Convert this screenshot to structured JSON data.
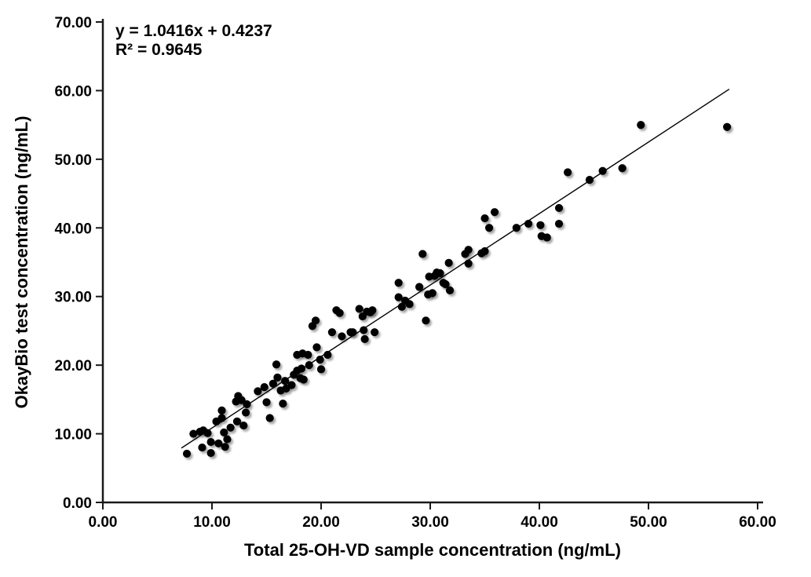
{
  "chart_data": {
    "type": "scatter",
    "title": "",
    "xlabel": "Total 25-OH-VD sample concentration (ng/mL)",
    "ylabel": "OkayBio test concentration (ng/mL)",
    "xlim": [
      0,
      60
    ],
    "ylim": [
      0,
      70
    ],
    "xticks": [
      0,
      10,
      20,
      30,
      40,
      50,
      60
    ],
    "yticks": [
      0,
      10,
      20,
      30,
      40,
      50,
      60,
      70
    ],
    "tick_label_decimals": 2,
    "grid": false,
    "legend": "none",
    "marker_color": "#000000",
    "axis_color": "#1a1a1a",
    "annotation": {
      "equation": "y = 1.0416x + 0.4237",
      "r_squared": "R² = 0.9645"
    },
    "trendline": {
      "slope": 1.0416,
      "intercept": 0.4237,
      "x_start": 7.2,
      "x_end": 57.4,
      "color": "#000000"
    },
    "points": [
      [
        7.7,
        7.1
      ],
      [
        8.3,
        10.0
      ],
      [
        8.9,
        10.3
      ],
      [
        9.1,
        8.0
      ],
      [
        9.2,
        10.5
      ],
      [
        9.6,
        10.1
      ],
      [
        9.9,
        8.8
      ],
      [
        9.9,
        7.2
      ],
      [
        10.4,
        11.8
      ],
      [
        10.6,
        8.6
      ],
      [
        10.9,
        13.4
      ],
      [
        10.9,
        12.3
      ],
      [
        11.1,
        10.2
      ],
      [
        11.2,
        8.1
      ],
      [
        11.4,
        9.2
      ],
      [
        11.7,
        10.9
      ],
      [
        12.2,
        14.7
      ],
      [
        12.3,
        11.8
      ],
      [
        12.4,
        15.5
      ],
      [
        12.7,
        14.9
      ],
      [
        12.9,
        11.2
      ],
      [
        13.1,
        13.1
      ],
      [
        13.2,
        14.3
      ],
      [
        14.2,
        16.2
      ],
      [
        14.8,
        16.8
      ],
      [
        15.0,
        14.6
      ],
      [
        15.3,
        12.3
      ],
      [
        15.6,
        17.3
      ],
      [
        15.9,
        20.1
      ],
      [
        16.0,
        18.2
      ],
      [
        16.3,
        16.3
      ],
      [
        16.5,
        14.4
      ],
      [
        16.7,
        17.7
      ],
      [
        16.8,
        16.6
      ],
      [
        17.3,
        17.1
      ],
      [
        17.5,
        18.6
      ],
      [
        17.8,
        19.2
      ],
      [
        17.8,
        21.5
      ],
      [
        18.1,
        18.1
      ],
      [
        18.2,
        19.5
      ],
      [
        18.3,
        21.7
      ],
      [
        18.4,
        17.9
      ],
      [
        18.8,
        21.5
      ],
      [
        18.9,
        20.0
      ],
      [
        19.2,
        25.7
      ],
      [
        19.5,
        26.5
      ],
      [
        19.6,
        22.6
      ],
      [
        19.9,
        20.8
      ],
      [
        20.0,
        19.4
      ],
      [
        20.6,
        21.5
      ],
      [
        21.0,
        24.8
      ],
      [
        21.4,
        28.0
      ],
      [
        21.7,
        27.6
      ],
      [
        21.9,
        24.2
      ],
      [
        22.7,
        24.8
      ],
      [
        22.9,
        24.8
      ],
      [
        23.5,
        28.2
      ],
      [
        23.8,
        27.1
      ],
      [
        23.9,
        25.1
      ],
      [
        24.0,
        23.8
      ],
      [
        24.2,
        27.8
      ],
      [
        24.5,
        27.7
      ],
      [
        24.7,
        28.0
      ],
      [
        24.9,
        24.8
      ],
      [
        27.1,
        32.0
      ],
      [
        27.1,
        29.9
      ],
      [
        27.4,
        28.5
      ],
      [
        27.7,
        29.4
      ],
      [
        28.1,
        28.9
      ],
      [
        29.0,
        31.4
      ],
      [
        29.3,
        36.2
      ],
      [
        29.6,
        26.5
      ],
      [
        29.8,
        30.3
      ],
      [
        29.9,
        32.9
      ],
      [
        30.2,
        30.5
      ],
      [
        30.4,
        33.0
      ],
      [
        30.6,
        33.5
      ],
      [
        30.9,
        33.4
      ],
      [
        31.2,
        32.0
      ],
      [
        31.4,
        31.8
      ],
      [
        31.7,
        34.9
      ],
      [
        31.8,
        30.9
      ],
      [
        33.2,
        36.2
      ],
      [
        33.5,
        36.8
      ],
      [
        33.5,
        34.8
      ],
      [
        34.7,
        36.3
      ],
      [
        35.0,
        36.6
      ],
      [
        35.0,
        41.4
      ],
      [
        35.4,
        40.0
      ],
      [
        35.9,
        42.3
      ],
      [
        37.9,
        40.0
      ],
      [
        39.0,
        40.6
      ],
      [
        40.1,
        40.4
      ],
      [
        40.2,
        38.8
      ],
      [
        40.7,
        38.6
      ],
      [
        41.8,
        40.6
      ],
      [
        41.8,
        42.9
      ],
      [
        42.6,
        48.1
      ],
      [
        44.6,
        47.0
      ],
      [
        45.8,
        48.3
      ],
      [
        47.6,
        48.7
      ],
      [
        49.3,
        55.0
      ],
      [
        57.2,
        54.7
      ]
    ]
  }
}
